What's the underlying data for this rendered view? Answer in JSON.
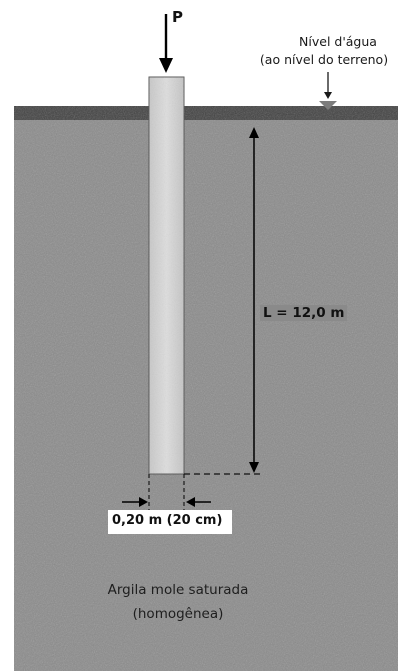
{
  "diagram": {
    "load_label": "P",
    "water_level": {
      "line1": "Nível d'água",
      "line2": "(ao nível do terreno)"
    },
    "length_label": "L = 12,0 m",
    "width_label": "0,20 m (20 cm)",
    "soil_label": {
      "line1": "Argila mole saturada",
      "line2": "(homogênea)"
    },
    "colors": {
      "soil": "#8a8a8a",
      "soil_surface": "#3f3f3f",
      "pile": "#d6d6d6",
      "pile_edge": "#5a5a5a",
      "water_marker": "#7d7d7d",
      "lines": "#000000"
    }
  }
}
